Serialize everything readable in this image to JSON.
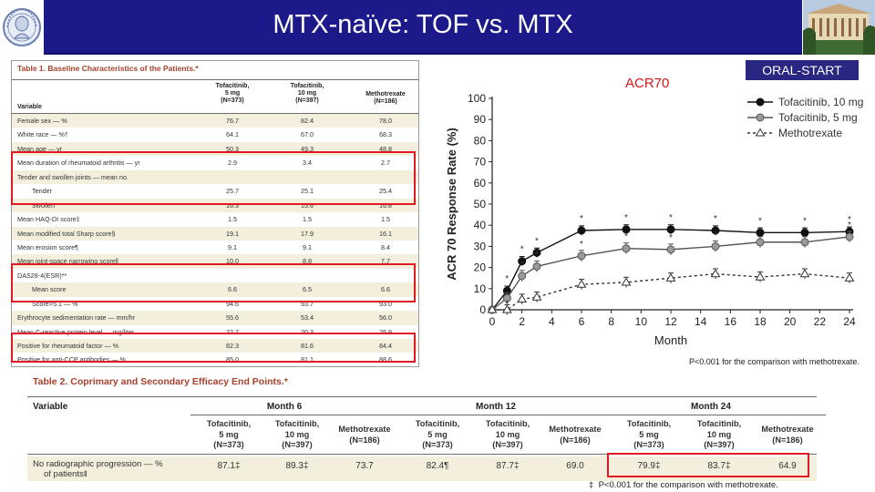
{
  "slide": {
    "title": "MTX-naïve: TOF vs. MTX",
    "acr_label": "ACR70",
    "study_badge": "ORAL-START",
    "colors": {
      "title_bar": "#1c1a8a",
      "badge": "#2a2783",
      "highlight": "#e01a22",
      "acr_label": "#d4161a"
    }
  },
  "table1": {
    "title": "Table 1. Baseline Characteristics of the Patients.*",
    "headers": {
      "variable": "Variable",
      "col1": [
        "Tofacitinib,",
        "5 mg",
        "(N=373)"
      ],
      "col2": [
        "Tofacitinib,",
        "10 mg",
        "(N=397)"
      ],
      "col3": [
        "Methotrexate",
        "(N=186)"
      ]
    },
    "rows": [
      {
        "label": "Female sex — %",
        "v1": "76.7",
        "v2": "82.4",
        "v3": "78.0",
        "indent": false
      },
      {
        "label": "White race — %†",
        "v1": "64.1",
        "v2": "67.0",
        "v3": "68.3",
        "indent": false
      },
      {
        "label": "Mean age — yr",
        "v1": "50.3",
        "v2": "49.3",
        "v3": "48.8",
        "indent": false
      },
      {
        "label": "Mean duration of rheumatoid arthritis — yr",
        "v1": "2.9",
        "v2": "3.4",
        "v3": "2.7",
        "indent": false
      },
      {
        "label": "Tender and swollen joints — mean no.",
        "v1": "",
        "v2": "",
        "v3": "",
        "indent": false
      },
      {
        "label": "Tender",
        "v1": "25.7",
        "v2": "25.1",
        "v3": "25.4",
        "indent": true
      },
      {
        "label": "Swollen",
        "v1": "16.3",
        "v2": "15.6",
        "v3": "16.8",
        "indent": true
      },
      {
        "label": "Mean HAQ-DI score‡",
        "v1": "1.5",
        "v2": "1.5",
        "v3": "1.5",
        "indent": false
      },
      {
        "label": "Mean modified total Sharp score§",
        "v1": "19.1",
        "v2": "17.9",
        "v3": "16.1",
        "indent": false
      },
      {
        "label": "Mean erosion score¶",
        "v1": "9.1",
        "v2": "9.1",
        "v3": "8.4",
        "indent": false
      },
      {
        "label": "Mean joint-space narrowing score‖",
        "v1": "10.0",
        "v2": "8.8",
        "v3": "7.7",
        "indent": false
      },
      {
        "label": "DAS28-4(ESR)**",
        "v1": "",
        "v2": "",
        "v3": "",
        "indent": false
      },
      {
        "label": "Mean score",
        "v1": "6.6",
        "v2": "6.5",
        "v3": "6.6",
        "indent": true
      },
      {
        "label": "Score>5.1 — %",
        "v1": "94.6",
        "v2": "93.7",
        "v3": "93.0",
        "indent": true
      },
      {
        "label": "Erythrocyte sedimentation rate — mm/hr",
        "v1": "55.6",
        "v2": "53.4",
        "v3": "56.0",
        "indent": false
      },
      {
        "label": "Mean C-reactive protein level — mg/liter",
        "v1": "22.7",
        "v2": "20.3",
        "v3": "25.9",
        "indent": false
      },
      {
        "label": "Positive for rheumatoid factor — %",
        "v1": "82.3",
        "v2": "81.6",
        "v3": "84.4",
        "indent": false
      },
      {
        "label": "Positive for anti-CCP antibodies — %",
        "v1": "85.0",
        "v2": "81.1",
        "v3": "88.6",
        "indent": false
      }
    ]
  },
  "chart_data": {
    "type": "line",
    "title": "",
    "xlabel": "Month",
    "ylabel": "ACR 70 Response Rate (%)",
    "x": [
      0,
      1,
      2,
      3,
      6,
      9,
      12,
      15,
      18,
      21,
      24
    ],
    "x_ticks": [
      0,
      2,
      4,
      6,
      8,
      10,
      12,
      14,
      16,
      18,
      20,
      22,
      24
    ],
    "y_ticks": [
      0,
      10,
      20,
      30,
      40,
      50,
      60,
      70,
      80,
      90,
      100
    ],
    "ylim": [
      0,
      100
    ],
    "xlim": [
      0,
      24
    ],
    "legend_position": "top-right",
    "series": [
      {
        "name": "Tofacitinib, 10 mg",
        "values": [
          0,
          9,
          23,
          27,
          37.5,
          38,
          38,
          37.5,
          36.5,
          36.5,
          37
        ],
        "marker": "filled-circle",
        "color": "#111111"
      },
      {
        "name": "Tofacitinib, 5 mg",
        "values": [
          0,
          5.5,
          16,
          20.5,
          25.5,
          29,
          28.5,
          30,
          32,
          32,
          34.5
        ],
        "marker": "gray-circle",
        "color": "#777777"
      },
      {
        "name": "Methotrexate",
        "values": [
          0,
          0,
          5,
          6,
          12,
          13,
          15,
          17,
          15.5,
          17,
          15
        ],
        "marker": "open-triangle",
        "color": "#333333"
      }
    ],
    "significance_marks": "*",
    "footnote": "P<0.001 for the comparison with methotrexate."
  },
  "table2": {
    "title": "Table 2. Coprimary and Secondary Efficacy End Points.*",
    "variable_header": "Variable",
    "groups": [
      "Month 6",
      "Month 12",
      "Month 24"
    ],
    "subheaders": [
      [
        "Tofacitinib,",
        "5 mg",
        "(N=373)"
      ],
      [
        "Tofacitinib,",
        "10 mg",
        "(N=397)"
      ],
      [
        "Methotrexate",
        "(N=186)"
      ]
    ],
    "row_label": [
      "No radiographic progression — %",
      "of patients‖"
    ],
    "values": [
      "87.1‡",
      "89.3‡",
      "73.7",
      "82.4¶",
      "87.7‡",
      "69.0",
      "79.9‡",
      "83.7‡",
      "64.9"
    ],
    "footnote_symbol": "‡",
    "footnote": "P<0.001 for the comparison with methotrexate."
  }
}
